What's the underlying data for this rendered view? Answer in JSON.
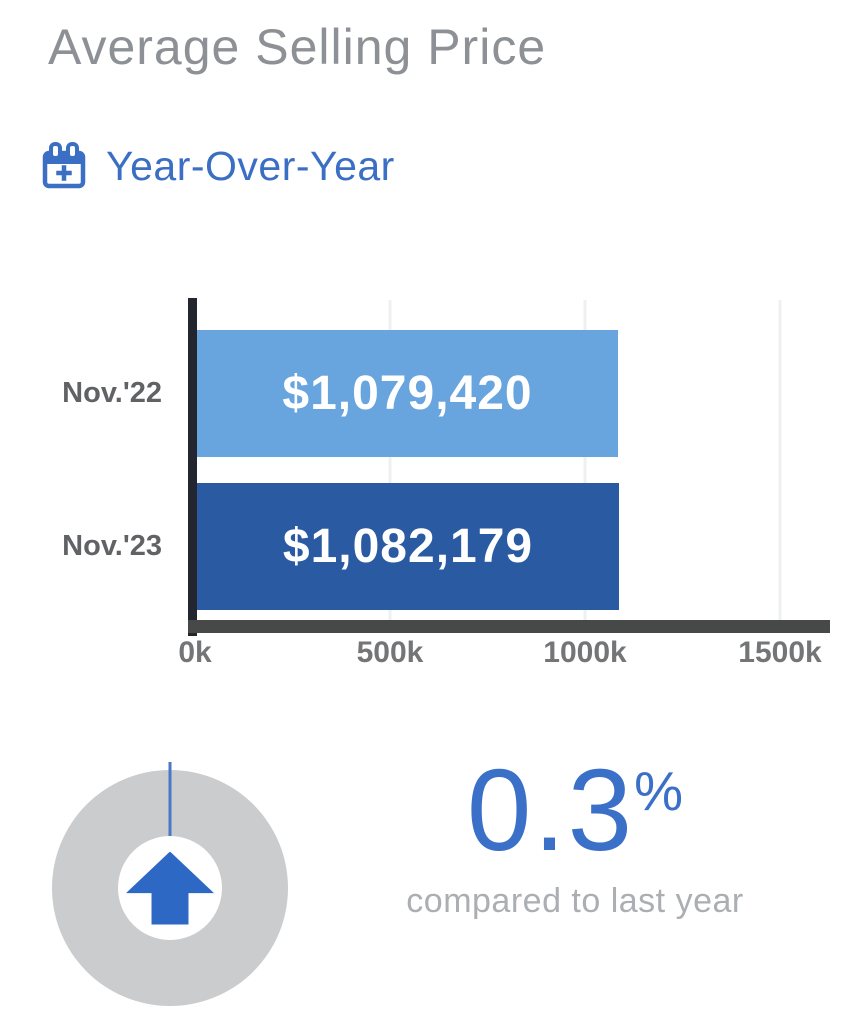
{
  "header": {
    "title": "Average Selling Price"
  },
  "period": {
    "label": "Year-Over-Year"
  },
  "chart_data": {
    "type": "bar",
    "orientation": "horizontal",
    "title": "Average Selling Price Year-Over-Year",
    "categories": [
      "Nov.'22",
      "Nov.'23"
    ],
    "values": [
      1079420,
      1082179
    ],
    "value_labels": [
      "$1,079,420",
      "$1,082,179"
    ],
    "bar_colors": [
      "#68a4de",
      "#2a5aa2"
    ],
    "x_ticks": [
      0,
      500000,
      1000000,
      1500000
    ],
    "x_tick_labels": [
      "0k",
      "500k",
      "1000k",
      "1500k"
    ],
    "xlim": [
      0,
      1500000
    ],
    "grid": true,
    "legend": false
  },
  "summary": {
    "value": "0.3",
    "unit": "%",
    "caption": "compared to last year",
    "direction": "up",
    "gauge_percent": 0.3
  },
  "icons": {
    "calendar": "calendar-plus-icon",
    "arrow": "arrow-up-icon"
  },
  "colors": {
    "accent_blue": "#3b6fc4",
    "bar_light": "#68a4de",
    "bar_dark": "#2a5aa2",
    "axis_dark": "#23262e",
    "axis_gray": "#474948",
    "title_gray": "#8d9095",
    "label_gray": "#606266",
    "caption_gray": "#abaeb2",
    "gauge_gray": "#cbcccd",
    "arrow_blue": "#2d68c5"
  }
}
